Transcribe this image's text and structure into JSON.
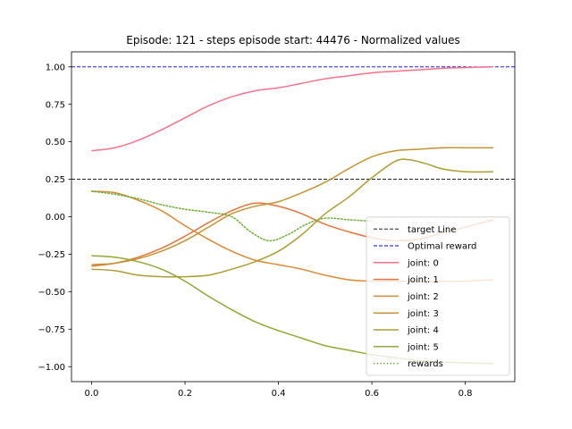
{
  "chart_data": {
    "type": "line",
    "title": "Episode: 121 - steps episode start: 44476 - Normalized values",
    "xlabel": "",
    "ylabel": "",
    "xlim": [
      -0.043,
      0.906
    ],
    "ylim": [
      -1.1,
      1.1
    ],
    "x_ticks": [
      0.0,
      0.2,
      0.4,
      0.6,
      0.8
    ],
    "x_tick_labels": [
      "0.0",
      "0.2",
      "0.4",
      "0.6",
      "0.8"
    ],
    "y_ticks": [
      1.0,
      0.75,
      0.5,
      0.25,
      0.0,
      -0.25,
      -0.5,
      -0.75,
      -1.0
    ],
    "y_tick_labels": [
      "1.00",
      "0.75",
      "0.50",
      "0.25",
      "0.00",
      "−0.25",
      "−0.50",
      "−0.75",
      "−1.00"
    ],
    "grid": false,
    "legend_position": "lower-right",
    "hlines": [
      {
        "name": "target Line",
        "y": 0.25,
        "color": "#000000",
        "style": "dashed"
      },
      {
        "name": "Optimal reward",
        "y": 1.0,
        "color": "#0000cc",
        "style": "dashed"
      }
    ],
    "series": [
      {
        "name": "joint: 0",
        "color": "#f77189",
        "style": "solid",
        "x": [
          0.0,
          0.05,
          0.1,
          0.15,
          0.2,
          0.25,
          0.3,
          0.35,
          0.4,
          0.45,
          0.5,
          0.55,
          0.6,
          0.65,
          0.7,
          0.75,
          0.8,
          0.86
        ],
        "y": [
          0.44,
          0.46,
          0.51,
          0.58,
          0.66,
          0.74,
          0.8,
          0.84,
          0.86,
          0.89,
          0.92,
          0.94,
          0.96,
          0.97,
          0.98,
          0.99,
          0.995,
          1.0
        ]
      },
      {
        "name": "joint: 1",
        "color": "#e5733a",
        "style": "solid",
        "x": [
          0.0,
          0.05,
          0.1,
          0.15,
          0.2,
          0.25,
          0.3,
          0.35,
          0.4,
          0.45,
          0.5,
          0.55,
          0.6,
          0.65,
          0.7,
          0.75,
          0.8,
          0.86
        ],
        "y": [
          -0.33,
          -0.31,
          -0.27,
          -0.21,
          -0.13,
          -0.04,
          0.04,
          0.09,
          0.07,
          0.02,
          -0.05,
          -0.1,
          -0.14,
          -0.16,
          -0.15,
          -0.11,
          -0.07,
          -0.02
        ]
      },
      {
        "name": "joint: 2",
        "color": "#dc8932",
        "style": "solid",
        "x": [
          0.0,
          0.05,
          0.1,
          0.15,
          0.2,
          0.25,
          0.3,
          0.35,
          0.4,
          0.45,
          0.5,
          0.55,
          0.6,
          0.65,
          0.7,
          0.75,
          0.8,
          0.86
        ],
        "y": [
          0.17,
          0.16,
          0.11,
          0.04,
          -0.06,
          -0.15,
          -0.23,
          -0.29,
          -0.32,
          -0.35,
          -0.39,
          -0.42,
          -0.43,
          -0.43,
          -0.43,
          -0.43,
          -0.43,
          -0.42
        ]
      },
      {
        "name": "joint: 3",
        "color": "#c49432",
        "style": "solid",
        "x": [
          0.0,
          0.05,
          0.1,
          0.15,
          0.2,
          0.25,
          0.3,
          0.35,
          0.4,
          0.45,
          0.5,
          0.55,
          0.6,
          0.65,
          0.7,
          0.75,
          0.8,
          0.86
        ],
        "y": [
          -0.32,
          -0.31,
          -0.28,
          -0.23,
          -0.16,
          -0.07,
          0.02,
          0.07,
          0.1,
          0.16,
          0.23,
          0.32,
          0.4,
          0.44,
          0.45,
          0.46,
          0.46,
          0.46
        ]
      },
      {
        "name": "joint: 4",
        "color": "#ae9d31",
        "style": "solid",
        "x": [
          0.0,
          0.05,
          0.1,
          0.15,
          0.2,
          0.25,
          0.3,
          0.35,
          0.4,
          0.45,
          0.5,
          0.55,
          0.6,
          0.65,
          0.68,
          0.72,
          0.75,
          0.8,
          0.86
        ],
        "y": [
          -0.35,
          -0.36,
          -0.39,
          -0.4,
          -0.4,
          -0.39,
          -0.35,
          -0.3,
          -0.23,
          -0.12,
          0.02,
          0.13,
          0.26,
          0.37,
          0.38,
          0.35,
          0.32,
          0.3,
          0.3
        ]
      },
      {
        "name": "joint: 5",
        "color": "#97a431",
        "style": "solid",
        "x": [
          0.0,
          0.05,
          0.1,
          0.15,
          0.2,
          0.25,
          0.3,
          0.35,
          0.4,
          0.45,
          0.5,
          0.55,
          0.6,
          0.65,
          0.7,
          0.75,
          0.8,
          0.86
        ],
        "y": [
          -0.26,
          -0.27,
          -0.3,
          -0.35,
          -0.43,
          -0.53,
          -0.62,
          -0.7,
          -0.76,
          -0.81,
          -0.86,
          -0.89,
          -0.92,
          -0.94,
          -0.96,
          -0.97,
          -0.975,
          -0.98
        ]
      },
      {
        "name": "rewards",
        "color": "#6ead32",
        "style": "dotted",
        "x": [
          0.0,
          0.05,
          0.1,
          0.15,
          0.2,
          0.25,
          0.3,
          0.34,
          0.38,
          0.42,
          0.46,
          0.5,
          0.55,
          0.6
        ],
        "y": [
          0.17,
          0.15,
          0.12,
          0.08,
          0.05,
          0.03,
          0.0,
          -0.1,
          -0.16,
          -0.12,
          -0.05,
          -0.01,
          -0.02,
          -0.03
        ]
      }
    ]
  }
}
